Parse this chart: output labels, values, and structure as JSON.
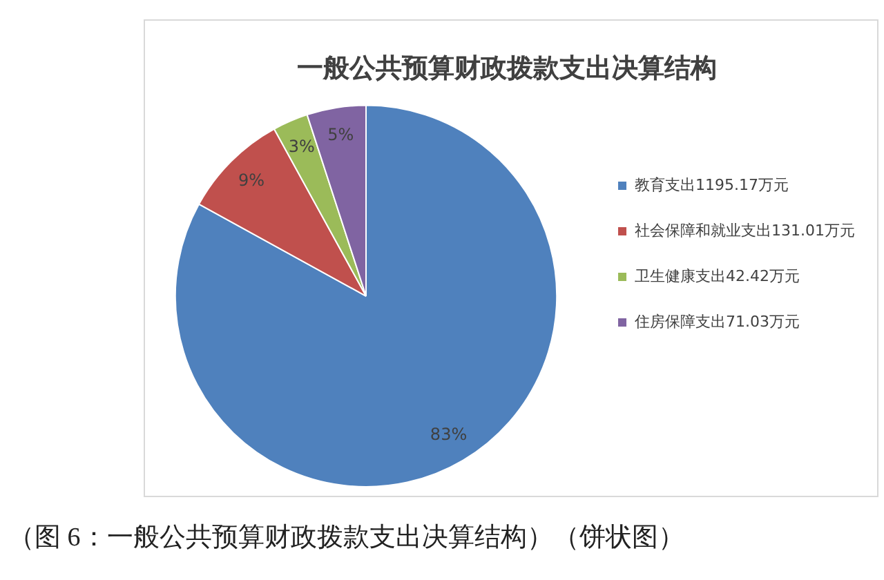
{
  "chart_data": {
    "type": "pie",
    "title": "一般公共预算财政拨款支出决算结构",
    "categories": [
      "教育支出1195.17万元",
      "社会保障和就业支出131.01万元",
      "卫生健康支出42.42万元",
      "住房保障支出71.03万元"
    ],
    "values": [
      83,
      9,
      3,
      5
    ],
    "colors": [
      "#4f81bd",
      "#c0504d",
      "#9bbb59",
      "#8064a2"
    ],
    "value_labels": [
      "83%",
      "9%",
      "3%",
      "5%"
    ],
    "legend": "right",
    "annotations": [
      "（图 6：一般公共预算财政拨款支出决算结构）（饼状图）"
    ]
  }
}
